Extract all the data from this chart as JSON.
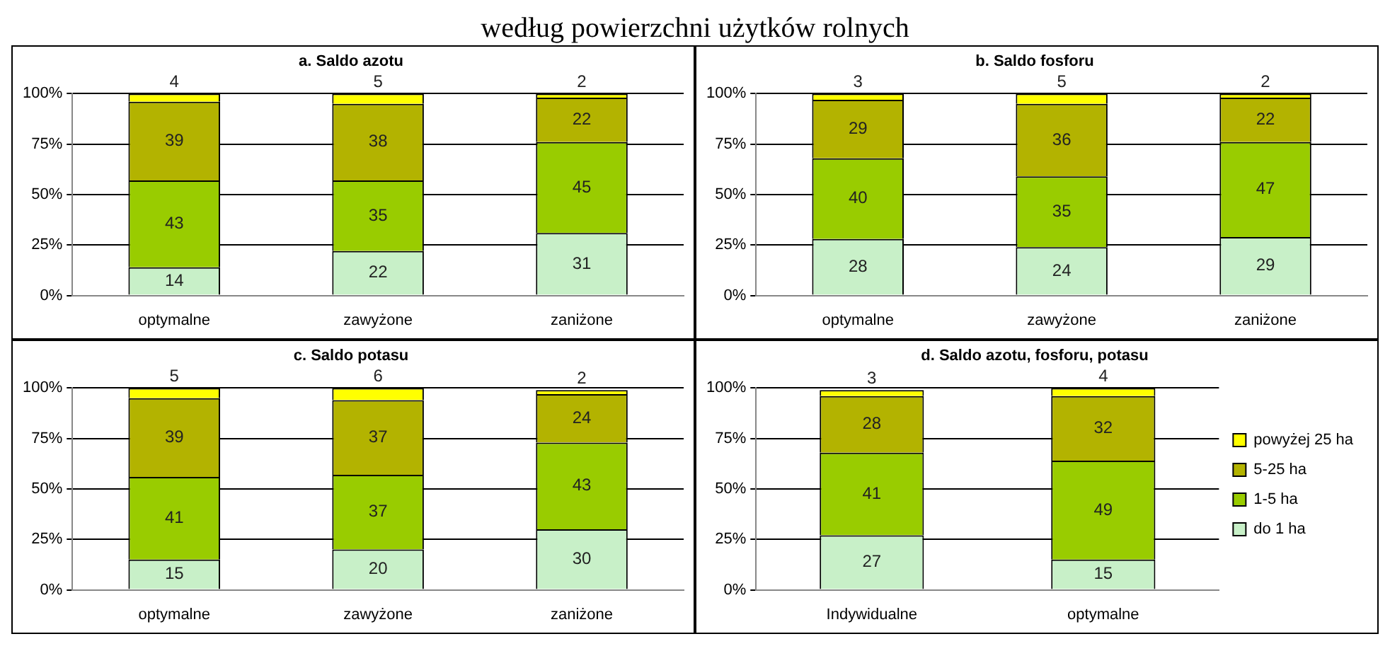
{
  "chart_data": [
    {
      "type": "bar",
      "title": "a. Saldo azotu",
      "annotations": [
        "według powierzchni użytków rolnych"
      ],
      "categories": [
        "optymalne",
        "zawyżone",
        "zaniżone"
      ],
      "stacked": true,
      "ylim": [
        0,
        100
      ],
      "yticks": [
        {
          "value": 0,
          "label": "0%"
        },
        {
          "value": 25,
          "label": "25%"
        },
        {
          "value": 50,
          "label": "50%"
        },
        {
          "value": 75,
          "label": "75%"
        },
        {
          "value": 100,
          "label": "100%"
        }
      ],
      "grid": "y",
      "data_labels": true,
      "legend": false,
      "series": [
        {
          "color": "#c8f0c8",
          "values": [
            14,
            22,
            31
          ]
        },
        {
          "color": "#99cc00",
          "values": [
            43,
            35,
            45
          ]
        },
        {
          "color": "#b3b300",
          "values": [
            39,
            38,
            22
          ]
        },
        {
          "color": "#ffff00",
          "values": [
            4,
            5,
            2
          ]
        }
      ]
    },
    {
      "type": "bar",
      "title": "b. Saldo fosforu",
      "categories": [
        "optymalne",
        "zawyżone",
        "zaniżone"
      ],
      "stacked": true,
      "ylim": [
        0,
        100
      ],
      "yticks": [
        {
          "value": 0,
          "label": "0%"
        },
        {
          "value": 25,
          "label": "25%"
        },
        {
          "value": 50,
          "label": "50%"
        },
        {
          "value": 75,
          "label": "75%"
        },
        {
          "value": 100,
          "label": "100%"
        }
      ],
      "grid": "y",
      "data_labels": true,
      "legend": false,
      "series": [
        {
          "color": "#c8f0c8",
          "values": [
            28,
            24,
            29
          ]
        },
        {
          "color": "#99cc00",
          "values": [
            40,
            35,
            47
          ]
        },
        {
          "color": "#b3b300",
          "values": [
            29,
            36,
            22
          ]
        },
        {
          "color": "#ffff00",
          "values": [
            3,
            5,
            2
          ]
        }
      ]
    },
    {
      "type": "bar",
      "title": "c. Saldo potasu",
      "categories": [
        "optymalne",
        "zawyżone",
        "zaniżone"
      ],
      "stacked": true,
      "ylim": [
        0,
        100
      ],
      "yticks": [
        {
          "value": 0,
          "label": "0%"
        },
        {
          "value": 25,
          "label": "25%"
        },
        {
          "value": 50,
          "label": "50%"
        },
        {
          "value": 75,
          "label": "75%"
        },
        {
          "value": 100,
          "label": "100%"
        }
      ],
      "grid": "y",
      "data_labels": true,
      "legend": false,
      "series": [
        {
          "color": "#c8f0c8",
          "values": [
            15,
            20,
            30
          ]
        },
        {
          "color": "#99cc00",
          "values": [
            41,
            37,
            43
          ]
        },
        {
          "color": "#b3b300",
          "values": [
            39,
            37,
            24
          ]
        },
        {
          "color": "#ffff00",
          "values": [
            5,
            6,
            2
          ]
        }
      ]
    },
    {
      "type": "bar",
      "title": "d. Saldo azotu, fosforu, potasu",
      "categories": [
        "Indywidualne",
        "optymalne"
      ],
      "stacked": true,
      "ylim": [
        0,
        100
      ],
      "yticks": [
        {
          "value": 0,
          "label": "0%"
        },
        {
          "value": 25,
          "label": "25%"
        },
        {
          "value": 50,
          "label": "50%"
        },
        {
          "value": 75,
          "label": "75%"
        },
        {
          "value": 100,
          "label": "100%"
        }
      ],
      "grid": "y",
      "data_labels": true,
      "legend": "right",
      "series": [
        {
          "name": "do 1 ha",
          "color": "#c8f0c8",
          "values": [
            27,
            15
          ]
        },
        {
          "name": "1-5 ha",
          "color": "#99cc00",
          "values": [
            41,
            49
          ]
        },
        {
          "name": "5-25 ha",
          "color": "#b3b300",
          "values": [
            28,
            32
          ]
        },
        {
          "name": "powyżej 25 ha",
          "color": "#ffff00",
          "values": [
            3,
            4
          ]
        }
      ]
    }
  ]
}
